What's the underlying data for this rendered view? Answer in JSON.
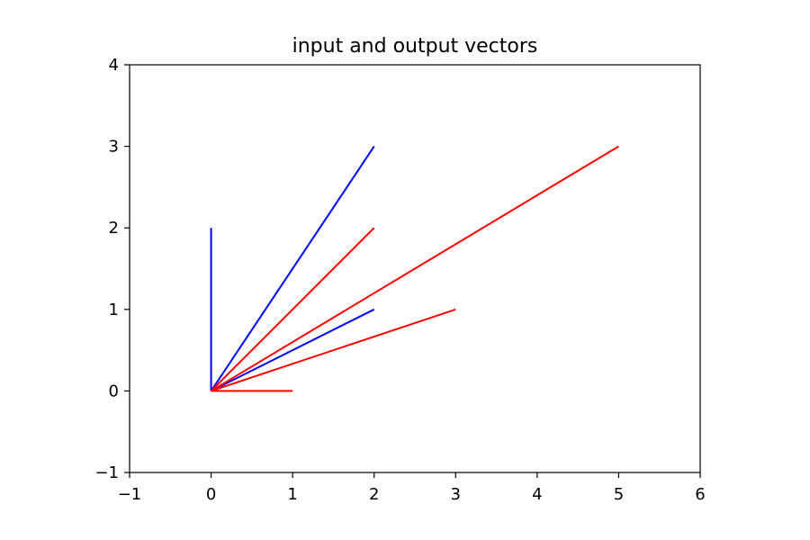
{
  "chart_data": {
    "type": "line",
    "title": "input and output vectors",
    "xlabel": "",
    "ylabel": "",
    "xlim": [
      -1,
      6
    ],
    "ylim": [
      -1,
      4
    ],
    "xticks": [
      -1,
      0,
      1,
      2,
      3,
      4,
      5,
      6
    ],
    "xtick_labels": [
      "−1",
      "0",
      "1",
      "2",
      "3",
      "4",
      "5",
      "6"
    ],
    "yticks": [
      -1,
      0,
      1,
      2,
      3,
      4
    ],
    "ytick_labels": [
      "−1",
      "0",
      "1",
      "2",
      "3",
      "4"
    ],
    "grid": false,
    "series": [
      {
        "color": "#0000ff",
        "segments": [
          {
            "x": [
              0,
              0
            ],
            "y": [
              0,
              2
            ]
          },
          {
            "x": [
              0,
              2
            ],
            "y": [
              0,
              3
            ]
          },
          {
            "x": [
              0,
              2
            ],
            "y": [
              0,
              1
            ]
          }
        ]
      },
      {
        "color": "#ff0000",
        "segments": [
          {
            "x": [
              0,
              2
            ],
            "y": [
              0,
              2
            ]
          },
          {
            "x": [
              0,
              5
            ],
            "y": [
              0,
              3
            ]
          },
          {
            "x": [
              0,
              3
            ],
            "y": [
              0,
              1
            ]
          },
          {
            "x": [
              0,
              1
            ],
            "y": [
              0,
              0
            ]
          }
        ]
      }
    ]
  }
}
